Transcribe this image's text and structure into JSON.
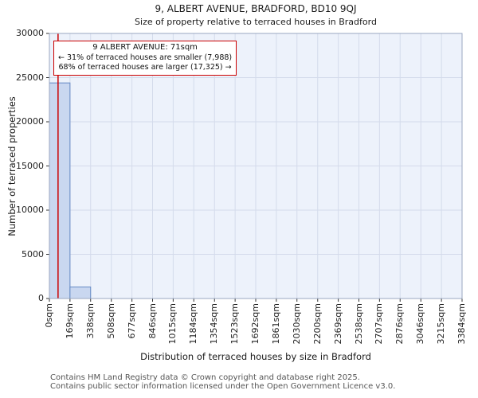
{
  "title": {
    "line1": "9, ALBERT AVENUE, BRADFORD, BD10 9QJ",
    "line2": "Size of property relative to terraced houses in Bradford"
  },
  "annotation": {
    "line1": "9 ALBERT AVENUE: 71sqm",
    "line2": "← 31% of terraced houses are smaller (7,988)",
    "line3": "68% of terraced houses are larger (17,325) →"
  },
  "footer": {
    "line1": "Contains HM Land Registry data © Crown copyright and database right 2025.",
    "line2": "Contains public sector information licensed under the Open Government Licence v3.0."
  },
  "chart_data": {
    "type": "bar",
    "title": "9, ALBERT AVENUE, BRADFORD, BD10 9QJ",
    "subtitle": "Size of property relative to terraced houses in Bradford",
    "xlabel": "Distribution of terraced houses by size in Bradford",
    "ylabel": "Number of terraced properties",
    "ylim": [
      0,
      30000
    ],
    "yticks": [
      0,
      5000,
      10000,
      15000,
      20000,
      25000,
      30000
    ],
    "bin_edges_sqm": [
      0,
      169,
      338,
      508,
      677,
      846,
      1015,
      1184,
      1354,
      1523,
      1692,
      1861,
      2030,
      2200,
      2369,
      2538,
      2707,
      2876,
      3046,
      3215,
      3384
    ],
    "bin_labels": [
      "0sqm",
      "169sqm",
      "338sqm",
      "508sqm",
      "677sqm",
      "846sqm",
      "1015sqm",
      "1184sqm",
      "1354sqm",
      "1523sqm",
      "1692sqm",
      "1861sqm",
      "2030sqm",
      "2200sqm",
      "2369sqm",
      "2538sqm",
      "2707sqm",
      "2876sqm",
      "3046sqm",
      "3215sqm",
      "3384sqm"
    ],
    "values": [
      24400,
      1300,
      0,
      0,
      0,
      0,
      0,
      0,
      0,
      0,
      0,
      0,
      0,
      0,
      0,
      0,
      0,
      0,
      0,
      0
    ],
    "marker_sqm": 71,
    "marker_label": "9 ALBERT AVENUE: 71sqm",
    "pct_smaller": 31,
    "count_smaller": 7988,
    "pct_larger": 68,
    "count_larger": 17325,
    "grid": true,
    "legend": "none",
    "bar_fill": "#c9d7f0",
    "bar_edge": "#6388c4",
    "plot_bg": "#edf2fb",
    "grid_color": "#d4dbeb",
    "marker_color": "#cc0000"
  }
}
